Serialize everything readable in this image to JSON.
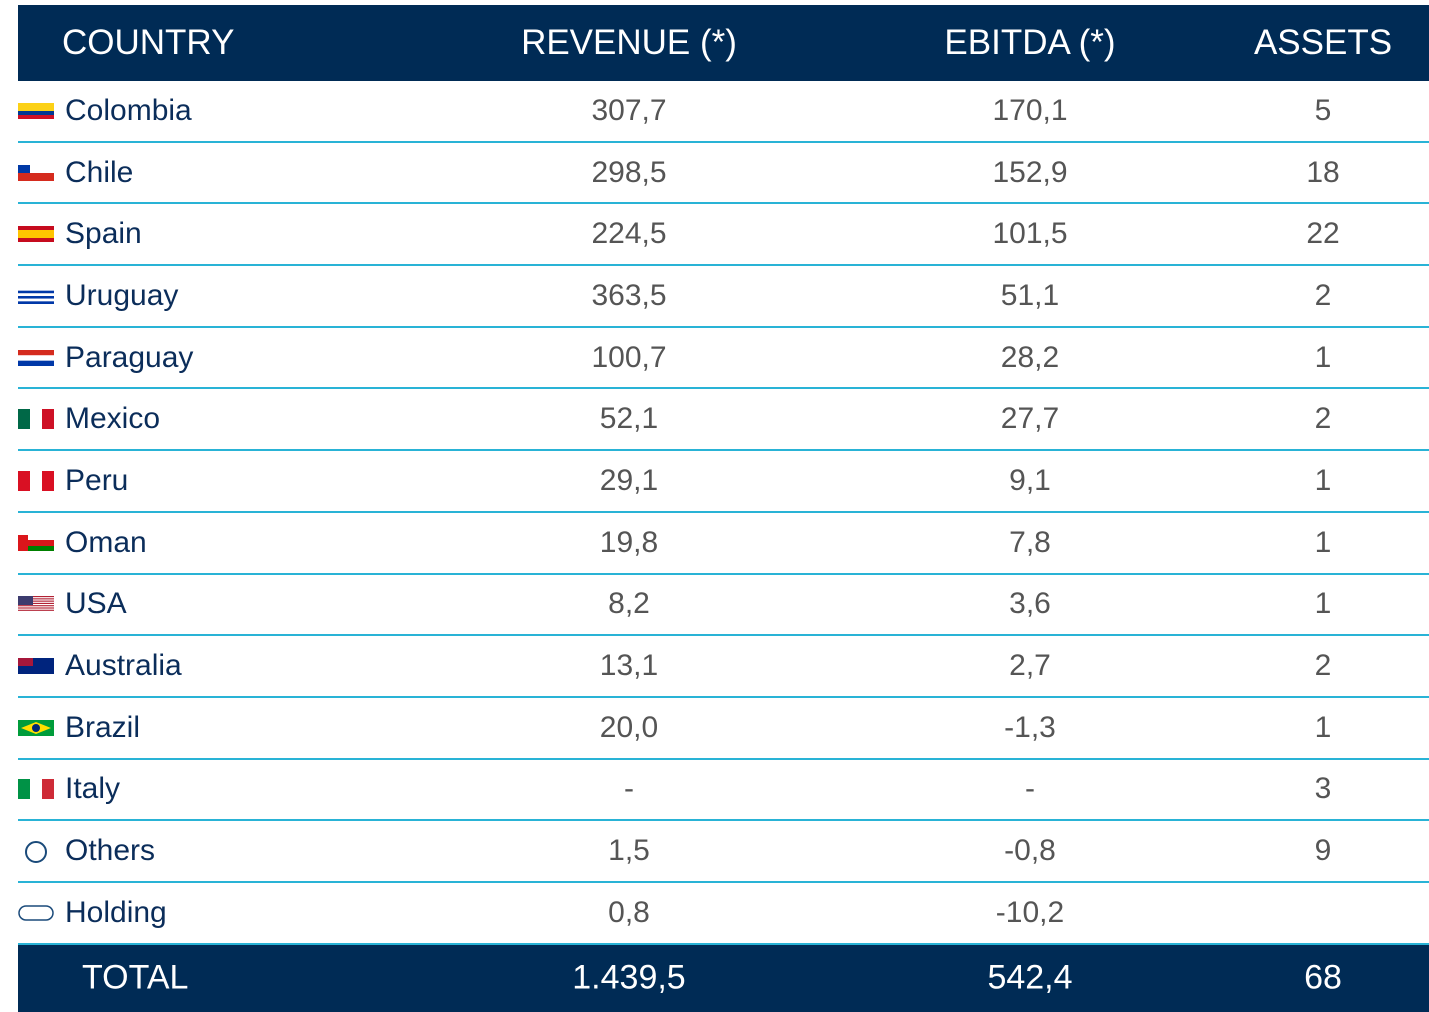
{
  "table": {
    "header": [
      "COUNTRY",
      "REVENUE (*)",
      "EBITDA (*)",
      "ASSETS"
    ],
    "rows": [
      [
        "Colombia",
        "307,7",
        "170,1",
        "5"
      ],
      [
        "Chile",
        "298,5",
        "152,9",
        "18"
      ],
      [
        "Spain",
        "224,5",
        "101,5",
        "22"
      ],
      [
        "Uruguay",
        "363,5",
        "51,1",
        "2"
      ],
      [
        "Paraguay",
        "100,7",
        "28,2",
        "1"
      ],
      [
        "Mexico",
        "52,1",
        "27,7",
        "2"
      ],
      [
        "Peru",
        "29,1",
        "9,1",
        "1"
      ],
      [
        "Oman",
        "19,8",
        "7,8",
        "1"
      ],
      [
        "USA",
        "8,2",
        "3,6",
        "1"
      ],
      [
        "Australia",
        "13,1",
        "2,7",
        "2"
      ],
      [
        "Brazil",
        "20,0",
        "-1,3",
        "1"
      ],
      [
        "Italy",
        "-",
        "-",
        "3"
      ],
      [
        "Others",
        "1,5",
        "-0,8",
        "9"
      ],
      [
        "Holding",
        "0,8",
        "-10,2"
      ]
    ],
    "total": [
      "TOTAL",
      "1.439,5",
      "542,4",
      "68"
    ]
  }
}
